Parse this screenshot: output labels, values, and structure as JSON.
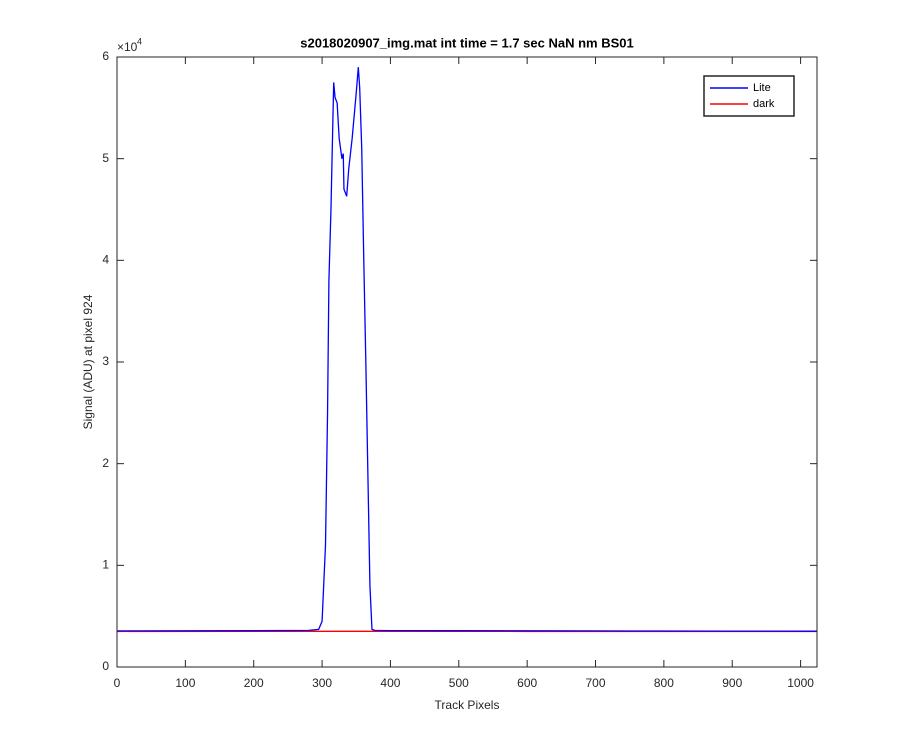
{
  "chart_data": {
    "type": "line",
    "title": "s2018020907_img.mat int time = 1.7 sec  NaN nm BS01",
    "x_label": "Track Pixels",
    "y_label": "Signal (ADU) at pixel 924",
    "y_multiplier": "×10",
    "y_multiplier_exponent": "4",
    "xlim": [
      0,
      1024
    ],
    "ylim": [
      0,
      60000
    ],
    "xticks": [
      0,
      100,
      200,
      300,
      400,
      500,
      600,
      700,
      800,
      900,
      1000
    ],
    "yticks": [
      {
        "value": 0,
        "label": "0"
      },
      {
        "value": 10000,
        "label": "1"
      },
      {
        "value": 20000,
        "label": "2"
      },
      {
        "value": 30000,
        "label": "3"
      },
      {
        "value": 40000,
        "label": "4"
      },
      {
        "value": 50000,
        "label": "5"
      },
      {
        "value": 60000,
        "label": "6"
      }
    ],
    "legend_position": "top-right",
    "series": [
      {
        "name": "Lite",
        "color": "#0000ff",
        "x": [
          0,
          100,
          200,
          280,
          295,
          300,
          305,
          308,
          310,
          313,
          317,
          319,
          322,
          325,
          329,
          331,
          332,
          336,
          339,
          344,
          348,
          350,
          353,
          355,
          358,
          361,
          364,
          367,
          370,
          373,
          377,
          400,
          500,
          600,
          700,
          800,
          900,
          1024
        ],
        "values": [
          3550,
          3560,
          3570,
          3600,
          3700,
          4500,
          12000,
          25000,
          38000,
          45000,
          57500,
          56000,
          55500,
          52000,
          50000,
          50500,
          47000,
          46300,
          49000,
          52000,
          55000,
          56500,
          59000,
          57000,
          51000,
          40000,
          30000,
          19000,
          8000,
          3700,
          3600,
          3580,
          3570,
          3560,
          3550,
          3540,
          3530,
          3520
        ]
      },
      {
        "name": "dark",
        "color": "#ff0000",
        "x": [
          0,
          200,
          400,
          600,
          800,
          1024
        ],
        "values": [
          3500,
          3510,
          3510,
          3500,
          3500,
          3500
        ]
      }
    ]
  }
}
